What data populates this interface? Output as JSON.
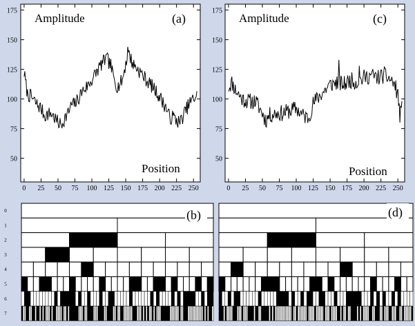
{
  "chart_data": [
    {
      "panel": "a",
      "type": "line",
      "panel_label": "(a)",
      "ylabel": "Amplitude",
      "xlabel": "Position",
      "xlim": [
        -5,
        260
      ],
      "ylim": [
        30,
        180
      ],
      "xticks": [
        0,
        25,
        50,
        75,
        100,
        125,
        150,
        175,
        200,
        225,
        250
      ],
      "yticks": [
        50,
        75,
        100,
        125,
        150,
        175
      ],
      "anchors": [
        [
          0,
          122
        ],
        [
          5,
          104
        ],
        [
          10,
          102
        ],
        [
          18,
          96
        ],
        [
          25,
          92
        ],
        [
          30,
          86
        ],
        [
          40,
          88
        ],
        [
          50,
          80
        ],
        [
          55,
          78
        ],
        [
          60,
          84
        ],
        [
          65,
          88
        ],
        [
          70,
          95
        ],
        [
          75,
          96
        ],
        [
          80,
          100
        ],
        [
          85,
          106
        ],
        [
          95,
          112
        ],
        [
          100,
          116
        ],
        [
          108,
          124
        ],
        [
          115,
          130
        ],
        [
          122,
          134
        ],
        [
          128,
          128
        ],
        [
          132,
          118
        ],
        [
          138,
          110
        ],
        [
          145,
          116
        ],
        [
          150,
          130
        ],
        [
          155,
          138
        ],
        [
          160,
          130
        ],
        [
          168,
          125
        ],
        [
          175,
          120
        ],
        [
          182,
          115
        ],
        [
          190,
          110
        ],
        [
          200,
          102
        ],
        [
          210,
          92
        ],
        [
          215,
          84
        ],
        [
          220,
          85
        ],
        [
          225,
          82
        ],
        [
          230,
          80
        ],
        [
          235,
          86
        ],
        [
          240,
          92
        ],
        [
          245,
          97
        ],
        [
          250,
          100
        ],
        [
          255,
          104
        ]
      ],
      "peaks": [
        [
          120,
          135
        ],
        [
          153,
          144
        ]
      ],
      "noise": 6
    },
    {
      "panel": "c",
      "type": "line",
      "panel_label": "(c)",
      "ylabel": "Amplitude",
      "xlabel": "Position",
      "xlim": [
        -5,
        260
      ],
      "ylim": [
        30,
        180
      ],
      "xticks": [
        0,
        25,
        50,
        75,
        100,
        125,
        150,
        175,
        200,
        225,
        250
      ],
      "yticks": [
        50,
        75,
        100,
        125,
        150,
        175
      ],
      "anchors": [
        [
          0,
          110
        ],
        [
          5,
          114
        ],
        [
          10,
          108
        ],
        [
          15,
          104
        ],
        [
          20,
          100
        ],
        [
          30,
          98
        ],
        [
          40,
          98
        ],
        [
          50,
          88
        ],
        [
          55,
          82
        ],
        [
          60,
          86
        ],
        [
          70,
          88
        ],
        [
          80,
          88
        ],
        [
          90,
          90
        ],
        [
          100,
          92
        ],
        [
          110,
          86
        ],
        [
          118,
          84
        ],
        [
          125,
          96
        ],
        [
          130,
          100
        ],
        [
          140,
          106
        ],
        [
          150,
          112
        ],
        [
          160,
          114
        ],
        [
          170,
          112
        ],
        [
          180,
          116
        ],
        [
          190,
          114
        ],
        [
          200,
          118
        ],
        [
          210,
          120
        ],
        [
          220,
          118
        ],
        [
          230,
          120
        ],
        [
          240,
          116
        ],
        [
          245,
          112
        ],
        [
          250,
          104
        ],
        [
          253,
          86
        ],
        [
          256,
          92
        ]
      ],
      "peaks": [
        [
          163,
          133
        ],
        [
          193,
          128
        ]
      ],
      "noise": 7
    }
  ],
  "bars": [
    {
      "panel": "b",
      "panel_label": "(b)",
      "level_labels": [
        "0",
        "1",
        "2",
        "3",
        "4",
        "5",
        "6",
        "7"
      ],
      "filled_cells": {
        "2": [
          1
        ],
        "3": [
          1
        ],
        "4": [
          5
        ]
      },
      "pattern_seed": 13
    },
    {
      "panel": "d",
      "panel_label": "(d)",
      "level_labels": [
        "0",
        "1",
        "2",
        "3",
        "4",
        "5",
        "6",
        "7"
      ],
      "filled_cells": {
        "2": [
          1
        ],
        "4": [
          1,
          10
        ]
      },
      "pattern_seed": 29
    }
  ],
  "colors": {
    "background": "#cfd7ea",
    "plot_bg": "#ffffff",
    "ink": "#000000"
  }
}
